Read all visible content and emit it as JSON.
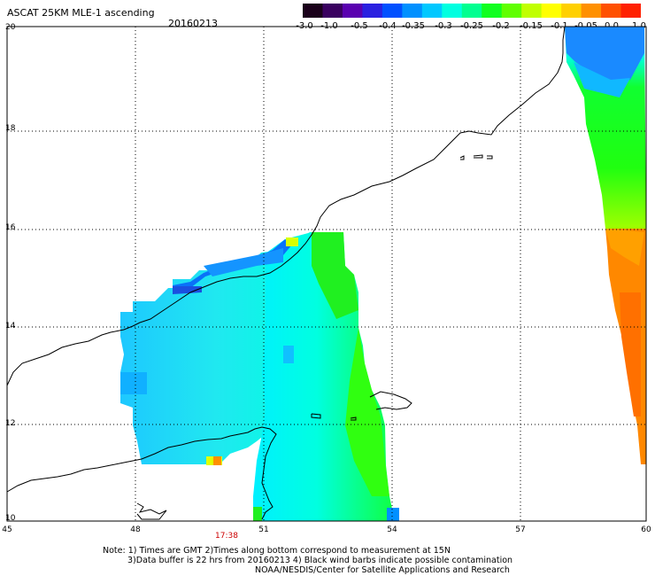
{
  "header": {
    "title": "ASCAT 25KM MLE-1 ascending",
    "date": "20160213"
  },
  "colorbar": {
    "ticks": [
      "-3.0",
      "-1.0",
      "-0.5",
      "-0.4",
      "-0.35",
      "-0.3",
      "-0.25",
      "-0.2",
      "-0.15",
      "-0.1",
      "-0.05",
      "0.0",
      "1.0"
    ],
    "colors": [
      "#1a001a",
      "#3a0060",
      "#5a00b0",
      "#2a20e0",
      "#0050ff",
      "#0090ff",
      "#00c8ff",
      "#00ffe0",
      "#00ff90",
      "#10ff20",
      "#60ff00",
      "#c0ff00",
      "#ffff00",
      "#ffd000",
      "#ff9000",
      "#ff5000",
      "#ff2000"
    ]
  },
  "axes": {
    "lat_labels": [
      "20",
      "18",
      "16",
      "14",
      "12",
      "10"
    ],
    "lon_labels": [
      "45",
      "48",
      "51",
      "54",
      "57",
      "60"
    ]
  },
  "time_label": "17:38",
  "footer": {
    "line1": "Note: 1) Times are GMT 2)Times along bottom correspond to measurement at 15N",
    "line2": "3)Data buffer is 22 hrs from 20160213 4) Black wind barbs indicate possible contamination",
    "line3": "NOAA/NESDIS/Center for Satellite Applications and Research"
  }
}
